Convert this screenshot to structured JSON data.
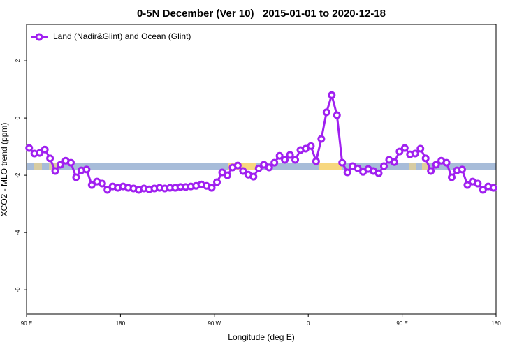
{
  "chart_data": {
    "type": "line",
    "title": "0-5N December (Ver 10)   2015-01-01 to 2020-12-18",
    "xlabel": "Longitude (deg E)",
    "ylabel": "XCO2 - MLO trend (ppm)",
    "xlim": [
      90,
      540
    ],
    "ylim": [
      -6.85,
      3.27
    ],
    "xticks": [
      {
        "value": 90,
        "label": "90 E"
      },
      180,
      {
        "value": 270,
        "label": "90 W"
      },
      {
        "value": 360,
        "label": "0"
      },
      {
        "value": 450,
        "label": "90 E"
      },
      {
        "value": 540,
        "label": "180"
      }
    ],
    "yticks": [
      -6,
      -4,
      -2,
      0,
      2
    ],
    "legend": "top-left",
    "x": [
      92.5,
      97.5,
      102.5,
      107.5,
      112.5,
      117.5,
      122.5,
      127.5,
      132.5,
      137.5,
      142.5,
      147.5,
      152.5,
      157.5,
      162.5,
      167.5,
      172.5,
      177.5,
      182.5,
      187.5,
      192.5,
      197.5,
      202.5,
      207.5,
      212.5,
      217.5,
      222.5,
      227.5,
      232.5,
      237.5,
      242.5,
      247.5,
      252.5,
      257.5,
      262.5,
      267.5,
      272.5,
      277.5,
      282.5,
      287.5,
      292.5,
      297.5,
      302.5,
      307.5,
      312.5,
      317.5,
      322.5,
      327.5,
      332.5,
      337.5,
      342.5,
      347.5,
      352.5,
      357.5,
      362.5,
      367.5,
      372.5,
      377.5,
      382.5,
      387.5,
      392.5,
      397.5,
      402.5,
      407.5,
      412.5,
      417.5,
      422.5,
      427.5,
      432.5,
      437.5,
      442.5,
      447.5,
      452.5,
      457.5,
      462.5,
      467.5,
      472.5,
      477.5,
      482.5,
      487.5,
      492.5,
      497.5,
      502.5,
      507.5,
      512.5,
      517.5,
      522.5,
      527.5,
      532.5,
      537.5
    ],
    "series": [
      {
        "name": "Land (Nadir&Glint) and Ocean (Glint)",
        "color": "#a020f0",
        "values": [
          -1.05,
          -1.24,
          -1.22,
          -1.1,
          -1.41,
          -1.85,
          -1.63,
          -1.49,
          -1.56,
          -2.07,
          -1.83,
          -1.8,
          -2.34,
          -2.22,
          -2.29,
          -2.51,
          -2.39,
          -2.44,
          -2.39,
          -2.44,
          -2.46,
          -2.51,
          -2.46,
          -2.49,
          -2.46,
          -2.44,
          -2.46,
          -2.44,
          -2.44,
          -2.41,
          -2.41,
          -2.39,
          -2.37,
          -2.32,
          -2.37,
          -2.44,
          -2.24,
          -1.9,
          -2.0,
          -1.73,
          -1.66,
          -1.85,
          -1.98,
          -2.05,
          -1.76,
          -1.63,
          -1.73,
          -1.56,
          -1.32,
          -1.46,
          -1.29,
          -1.46,
          -1.12,
          -1.07,
          -0.98,
          -1.51,
          -0.73,
          0.2,
          0.8,
          0.1,
          -1.56,
          -1.9,
          -1.68,
          -1.76,
          -1.88,
          -1.78,
          -1.85,
          -1.93,
          -1.68,
          -1.46,
          -1.54,
          -1.17,
          -1.05,
          -1.27,
          -1.24,
          -1.07,
          -1.41,
          -1.85,
          -1.63,
          -1.49,
          -1.56,
          -2.07,
          -1.83,
          -1.8,
          -2.34,
          -2.22,
          -2.29,
          -2.51,
          -2.39,
          -2.44
        ]
      }
    ]
  }
}
